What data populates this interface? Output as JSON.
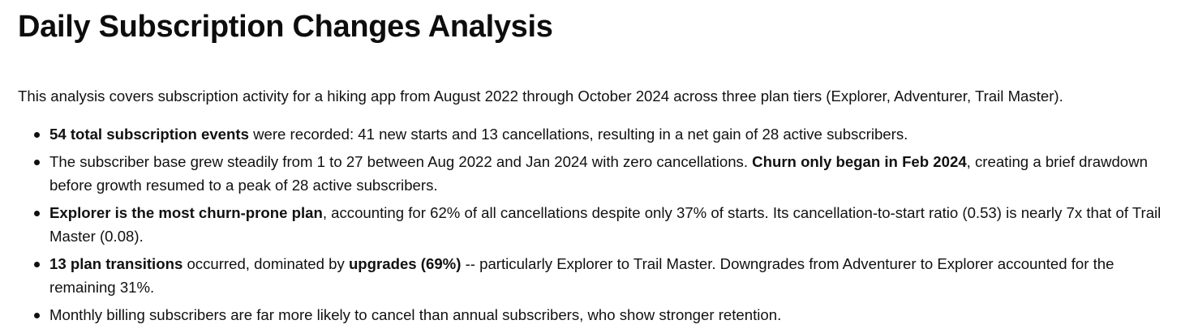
{
  "title": "Daily Subscription Changes Analysis",
  "intro": "This analysis covers subscription activity for a hiking app from August 2022 through October 2024 across three plan tiers (Explorer, Adventurer, Trail Master).",
  "bullets": [
    {
      "b1": "54 total subscription events",
      "t1": " were recorded: 41 new starts and 13 cancellations, resulting in a net gain of 28 active subscribers."
    },
    {
      "t1": "The subscriber base grew steadily from 1 to 27 between Aug 2022 and Jan 2024 with zero cancellations. ",
      "b1": "Churn only began in Feb 2024",
      "t2": ", creating a brief drawdown before growth resumed to a peak of 28 active subscribers."
    },
    {
      "b1": "Explorer is the most churn-prone plan",
      "t1": ", accounting for 62% of all cancellations despite only 37% of starts. Its cancellation-to-start ratio (0.53) is nearly 7x that of Trail Master (0.08)."
    },
    {
      "b1": "13 plan transitions",
      "t1": " occurred, dominated by ",
      "b2": "upgrades (69%)",
      "t2": " -- particularly Explorer to Trail Master. Downgrades from Adventurer to Explorer accounted for the remaining 31%."
    },
    {
      "t1": "Monthly billing subscribers are far more likely to cancel than annual subscribers, who show stronger retention."
    }
  ]
}
